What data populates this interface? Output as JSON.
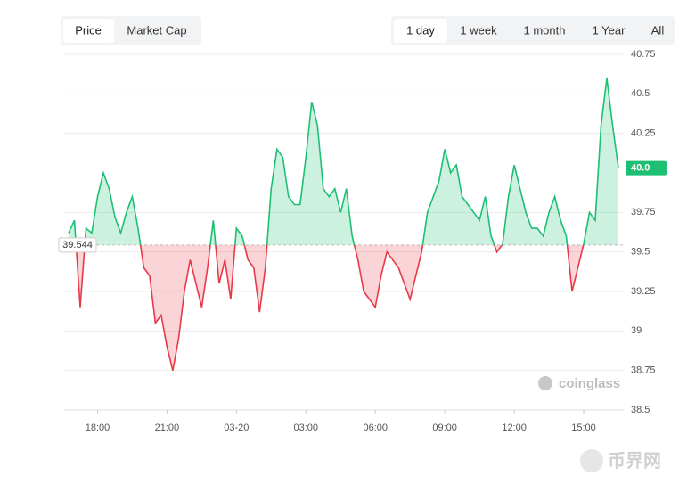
{
  "tabs": {
    "metric": [
      "Price",
      "Market Cap"
    ],
    "range": [
      "1 day",
      "1 week",
      "1 month",
      "1 Year",
      "All"
    ]
  },
  "watermark": "coinglass",
  "corner_watermark": "币界网",
  "chart_data": {
    "type": "line",
    "x": [
      16.75,
      17,
      17.25,
      17.5,
      17.75,
      18,
      18.25,
      18.5,
      18.75,
      19,
      19.25,
      19.5,
      19.75,
      20,
      20.25,
      20.5,
      20.75,
      21,
      21.25,
      21.5,
      21.75,
      22,
      22.25,
      22.5,
      22.75,
      23,
      23.25,
      23.5,
      23.75,
      24,
      24.25,
      24.5,
      24.75,
      25,
      25.25,
      25.5,
      25.75,
      26,
      26.25,
      26.5,
      26.75,
      27,
      27.25,
      27.5,
      27.75,
      28,
      28.25,
      28.5,
      28.75,
      29,
      29.25,
      29.5,
      29.75,
      30,
      30.25,
      30.5,
      30.75,
      31,
      31.25,
      31.5,
      31.75,
      32,
      32.25,
      32.5,
      32.75,
      33,
      33.25,
      33.5,
      33.75,
      34,
      34.25,
      34.5,
      34.75,
      35,
      35.25,
      35.5,
      35.75,
      36,
      36.25,
      36.5,
      36.75,
      37,
      37.25,
      37.5,
      37.75,
      38,
      38.25,
      38.5,
      38.75,
      39,
      39.25,
      39.5,
      39.75,
      40,
      40.25,
      40.5
    ],
    "values": [
      39.62,
      39.7,
      39.15,
      39.65,
      39.62,
      39.85,
      40.0,
      39.9,
      39.72,
      39.62,
      39.75,
      39.85,
      39.65,
      39.4,
      39.35,
      39.05,
      39.1,
      38.9,
      38.75,
      38.95,
      39.25,
      39.45,
      39.3,
      39.15,
      39.4,
      39.7,
      39.3,
      39.45,
      39.2,
      39.65,
      39.6,
      39.45,
      39.4,
      39.12,
      39.4,
      39.9,
      40.15,
      40.1,
      39.85,
      39.8,
      39.8,
      40.1,
      40.45,
      40.3,
      39.9,
      39.85,
      39.9,
      39.75,
      39.9,
      39.6,
      39.45,
      39.25,
      39.2,
      39.15,
      39.35,
      39.5,
      39.45,
      39.4,
      39.3,
      39.2,
      39.35,
      39.5,
      39.75,
      39.85,
      39.95,
      40.15,
      40.0,
      40.05,
      39.85,
      39.8,
      39.75,
      39.7,
      39.85,
      39.6,
      39.5,
      39.55,
      39.85,
      40.05,
      39.9,
      39.75,
      39.65,
      39.65,
      39.6,
      39.75,
      39.85,
      39.7,
      39.6,
      39.25,
      39.4,
      39.55,
      39.75,
      39.7,
      40.3,
      40.6,
      40.3,
      40.03
    ],
    "up_color": "#1dbf73",
    "down_color": "#e8394a",
    "baseline": 39.544,
    "last_label": "40.0",
    "xlim": [
      16.75,
      40.5
    ],
    "xticks": [
      {
        "value": 18,
        "label": "18:00"
      },
      {
        "value": 21,
        "label": "21:00"
      },
      {
        "value": 24,
        "label": "03-20"
      },
      {
        "value": 27,
        "label": "03:00"
      },
      {
        "value": 30,
        "label": "06:00"
      },
      {
        "value": 33,
        "label": "09:00"
      },
      {
        "value": 36,
        "label": "12:00"
      },
      {
        "value": 39,
        "label": "15:00"
      }
    ],
    "ylim": [
      38.5,
      40.75
    ],
    "yticks": [
      38.5,
      38.75,
      39,
      39.25,
      39.5,
      39.75,
      40.25,
      40.5,
      40.75
    ],
    "grid": true
  }
}
